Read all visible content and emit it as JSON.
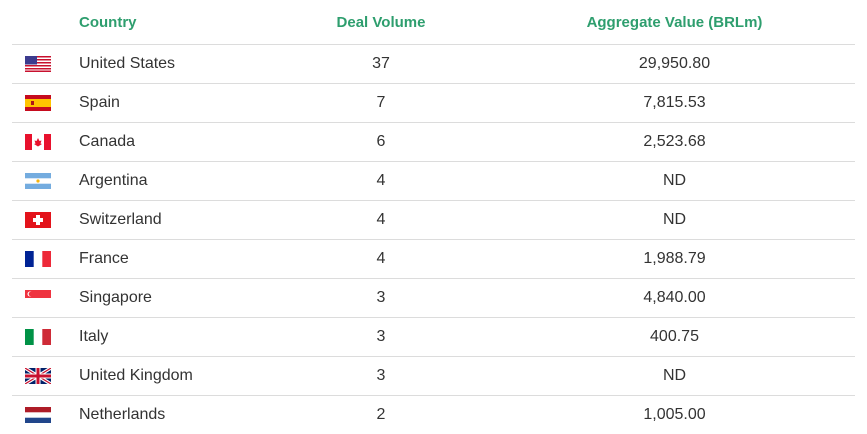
{
  "table": {
    "headers": [
      "Country",
      "Deal Volume",
      "Aggregate Value (BRLm)"
    ],
    "rows": [
      [
        "United States",
        37,
        "29,950.80"
      ],
      [
        "Spain",
        7,
        "7,815.53"
      ],
      [
        "Canada",
        6,
        "2,523.68"
      ],
      [
        "Argentina",
        4,
        "ND"
      ],
      [
        "Switzerland",
        4,
        "ND"
      ],
      [
        "France",
        4,
        "1,988.79"
      ],
      [
        "Singapore",
        3,
        "4,840.00"
      ],
      [
        "Italy",
        3,
        "400.75"
      ],
      [
        "United Kingdom",
        3,
        "ND"
      ],
      [
        "Netherlands",
        2,
        "1,005.00"
      ]
    ]
  }
}
